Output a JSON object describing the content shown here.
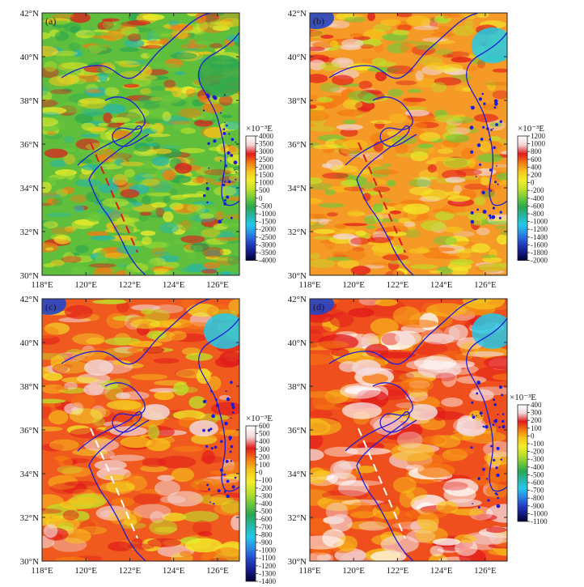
{
  "figure": {
    "lat_ticks": [
      "30°N",
      "32°N",
      "34°N",
      "36°N",
      "38°N",
      "40°N",
      "42°N"
    ],
    "lon_ticks": [
      "118°E",
      "120°E",
      "122°E",
      "124°E",
      "126°E"
    ],
    "unit_label": "×10⁻³E",
    "coastline_color": "#1c1cd6",
    "profile_line_color_top": "#d81b1b",
    "profile_line_color_bottom": "#ffffff"
  },
  "panels": [
    {
      "id": "a",
      "label": "(a)",
      "colorbar_labels": [
        "4000",
        "3500",
        "3000",
        "2500",
        "2000",
        "1500",
        "1000",
        "500",
        "0",
        "-500",
        "-1000",
        "-1500",
        "-2000",
        "-2500",
        "-3000",
        "-3500",
        "-4000"
      ],
      "palette": [
        "#ffffff",
        "#f3d7d7",
        "#e11b1b",
        "#f57a12",
        "#f7c51b",
        "#f2ee2a",
        "#bde02b",
        "#6ec93a",
        "#2aa64f",
        "#27b6a7",
        "#24c9e8",
        "#2a89e6",
        "#2346c9",
        "#151a8a",
        "#000033"
      ],
      "dominant": "green"
    },
    {
      "id": "b",
      "label": "(b)",
      "colorbar_labels": [
        "1200",
        "1000",
        "800",
        "600",
        "400",
        "200",
        "0",
        "-200",
        "-400",
        "-600",
        "-800",
        "-1000",
        "-1200",
        "-1400",
        "-1600",
        "-1800",
        "-2000"
      ],
      "palette": [
        "#ffffff",
        "#f3d7d7",
        "#e11b1b",
        "#f57a12",
        "#f7c51b",
        "#f2ee2a",
        "#bde02b",
        "#6ec93a",
        "#2aa64f",
        "#27b6a7",
        "#24c9e8",
        "#2a89e6",
        "#2346c9",
        "#151a8a",
        "#000033"
      ],
      "dominant": "orange"
    },
    {
      "id": "c",
      "label": "(c)",
      "colorbar_labels": [
        "600",
        "500",
        "400",
        "300",
        "200",
        "100",
        "0",
        "-100",
        "-200",
        "-300",
        "-400",
        "-500",
        "-600",
        "-700",
        "-800",
        "-900",
        "-1000",
        "-1100",
        "-1200",
        "-1300",
        "-1400"
      ],
      "palette": [
        "#ffffff",
        "#f3d7d7",
        "#e11b1b",
        "#f57a12",
        "#f7c51b",
        "#f2ee2a",
        "#bde02b",
        "#6ec93a",
        "#2aa64f",
        "#27b6a7",
        "#24c9e8",
        "#2a89e6",
        "#2346c9",
        "#151a8a",
        "#000033"
      ],
      "dominant": "red"
    },
    {
      "id": "d",
      "label": "(d)",
      "colorbar_labels": [
        "400",
        "300",
        "200",
        "100",
        "0",
        "-100",
        "-200",
        "-300",
        "-400",
        "-500",
        "-600",
        "-700",
        "-800",
        "-900",
        "-1000",
        "-1100"
      ],
      "palette": [
        "#ffffff",
        "#f3d7d7",
        "#e11b1b",
        "#f57a12",
        "#f7c51b",
        "#f2ee2a",
        "#bde02b",
        "#6ec93a",
        "#2aa64f",
        "#27b6a7",
        "#24c9e8",
        "#2a89e6",
        "#2346c9",
        "#151a8a",
        "#000033"
      ],
      "dominant": "red-smooth"
    }
  ]
}
